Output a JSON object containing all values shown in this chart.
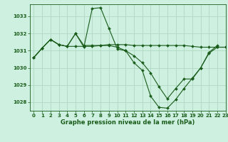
{
  "background_color": "#cdf0e0",
  "grid_color": "#b0d8c0",
  "line_color": "#1a5c1a",
  "marker_color": "#1a5c1a",
  "xlabel": "Graphe pression niveau de la mer (hPa)",
  "xlabel_fontsize": 6.0,
  "xlim": [
    -0.5,
    23
  ],
  "ylim": [
    1027.5,
    1033.7
  ],
  "yticks": [
    1028,
    1029,
    1030,
    1031,
    1032,
    1033
  ],
  "xticks": [
    0,
    1,
    2,
    3,
    4,
    5,
    6,
    7,
    8,
    9,
    10,
    11,
    12,
    13,
    14,
    15,
    16,
    17,
    18,
    19,
    20,
    21,
    22,
    23
  ],
  "series": [
    [
      1030.6,
      1031.15,
      1031.65,
      1031.35,
      1031.25,
      1032.0,
      1031.2,
      1033.45,
      1033.5,
      1032.3,
      1031.1,
      1031.0,
      1030.3,
      1029.85,
      1028.35,
      1027.7,
      1027.65,
      1028.15,
      1028.8,
      1029.4,
      1030.0,
      1030.9,
      1031.3,
      null
    ],
    [
      1030.6,
      1031.15,
      1031.65,
      1031.35,
      1031.25,
      1031.25,
      1031.25,
      1031.25,
      1031.3,
      1031.35,
      1031.35,
      1031.35,
      1031.3,
      1031.3,
      1031.3,
      1031.3,
      1031.3,
      1031.3,
      1031.3,
      1031.25,
      1031.2,
      1031.2,
      1031.2,
      1031.2
    ],
    [
      1030.6,
      1031.15,
      1031.65,
      1031.35,
      1031.25,
      1032.0,
      1031.3,
      1031.3,
      1031.3,
      1031.3,
      1031.2,
      1031.0,
      1030.7,
      1030.3,
      1029.7,
      1028.9,
      1028.2,
      1028.8,
      1029.35,
      1029.35,
      1030.0,
      1030.85,
      1031.2,
      1031.2
    ]
  ],
  "tick_fontsize": 5,
  "tick_color": "#1a5c1a",
  "linewidth": 0.8,
  "markersize": 2.0
}
